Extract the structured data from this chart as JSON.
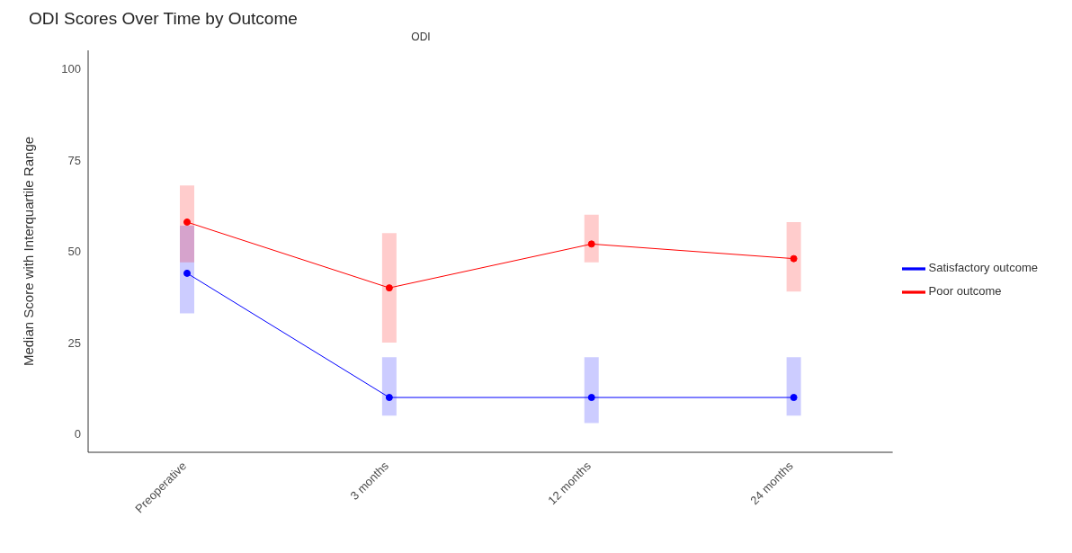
{
  "chart_data": {
    "type": "line",
    "title": "ODI Scores Over Time by Outcome",
    "subtitle": "ODI",
    "ylabel": "Median Score with Interquartile Range",
    "categories": [
      "Preoperative",
      "3 months",
      "12 months",
      "24 months"
    ],
    "series": [
      {
        "name": "Satisfactory outcome",
        "color": "#0000ff",
        "values": [
          44,
          10,
          10,
          10
        ],
        "errors": [
          [
            33,
            57
          ],
          [
            5,
            21
          ],
          [
            3,
            21
          ],
          [
            5,
            21
          ]
        ]
      },
      {
        "name": "Poor outcome",
        "color": "#ff0000",
        "values": [
          58,
          40,
          52,
          48
        ],
        "errors": [
          [
            47,
            68
          ],
          [
            25,
            55
          ],
          [
            47,
            60
          ],
          [
            39,
            58
          ]
        ]
      }
    ],
    "ylim": [
      -5,
      105
    ],
    "yticks": [
      0,
      25,
      50,
      75,
      100
    ],
    "grid": false,
    "legend": "right",
    "marker": "circle",
    "line_style": "solid"
  }
}
